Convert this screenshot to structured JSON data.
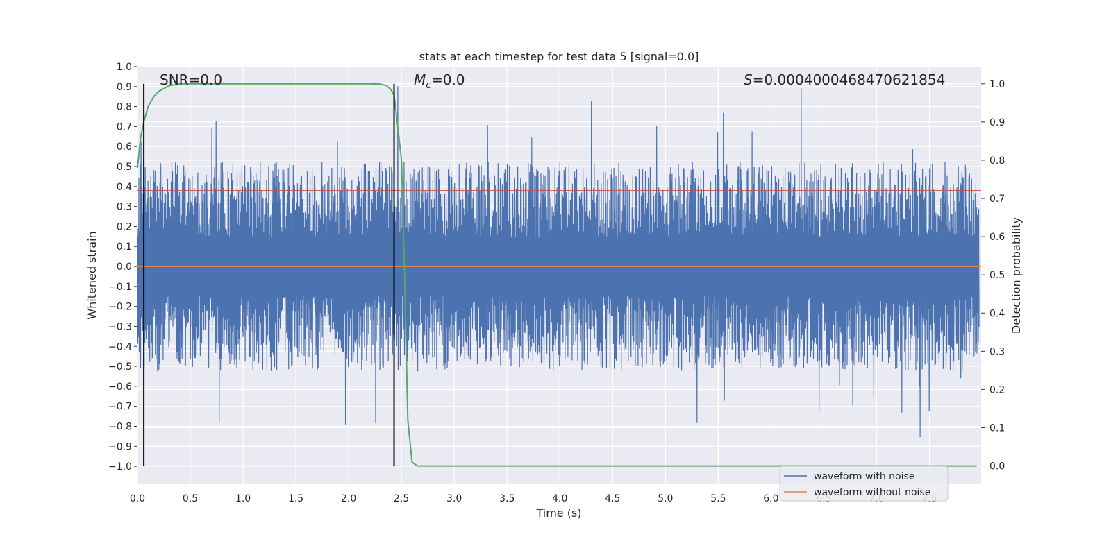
{
  "chart_data": {
    "type": "line",
    "title": "stats at each timestep for test data 5 [signal=0.0]",
    "xlabel": "Time (s)",
    "ylabel": "Whitened strain",
    "ylabel_right": "Detection probability",
    "xlim": [
      0.0,
      7.99
    ],
    "ylim": [
      -1.09,
      1.0
    ],
    "ylim_right": [
      -0.048,
      1.045
    ],
    "x_ticks": [
      "0.0",
      "0.5",
      "1.0",
      "1.5",
      "2.0",
      "2.5",
      "3.0",
      "3.5",
      "4.0",
      "4.5",
      "5.0",
      "5.5",
      "6.0",
      "6.5",
      "7.0",
      "7.5"
    ],
    "y_ticks": [
      "1.0",
      "0.9",
      "0.8",
      "0.7",
      "0.6",
      "0.5",
      "0.4",
      "0.3",
      "0.2",
      "0.1",
      "0.0",
      "−0.1",
      "−0.2",
      "−0.3",
      "−0.4",
      "−0.5",
      "−0.6",
      "−0.7",
      "−0.8",
      "−0.9",
      "−1.0"
    ],
    "y2_ticks": [
      "1.0",
      "0.9",
      "0.8",
      "0.7",
      "0.6",
      "0.5",
      "0.4",
      "0.3",
      "0.2",
      "0.1",
      "0.0"
    ],
    "grid": true,
    "annotations": {
      "snr": "SNR=0.0",
      "mc_symbol": "M",
      "mc_sub": "c",
      "mc_value": "=0.0",
      "s_symbol": "S",
      "s_value": "=0.0004000468470621854"
    },
    "threshold": 0.72,
    "vlines": [
      0.06,
      2.43
    ],
    "series": [
      {
        "name": "waveform with noise",
        "color": "#4c72b0",
        "envelope": {
          "typical_abs": 0.42,
          "max": 0.91,
          "min": -1.0
        }
      },
      {
        "name": "waveform without noise",
        "color": "#dd8452",
        "values_constant": 0.0
      },
      {
        "name": "detection probability",
        "color": "#55a868",
        "axis": "right",
        "x": [
          0.0,
          0.03,
          0.06,
          0.1,
          0.15,
          0.2,
          0.3,
          0.4,
          0.6,
          1.0,
          1.5,
          2.0,
          2.2,
          2.3,
          2.36,
          2.4,
          2.43,
          2.46,
          2.5,
          2.53,
          2.56,
          2.6,
          2.65,
          2.7,
          3.0,
          3.5,
          4.0,
          5.0,
          6.0,
          7.0,
          7.95
        ],
        "values": [
          0.78,
          0.86,
          0.9,
          0.94,
          0.965,
          0.98,
          0.995,
          1.0,
          1.0,
          1.0,
          1.0,
          1.0,
          1.0,
          0.999,
          0.995,
          0.985,
          0.97,
          0.9,
          0.8,
          0.5,
          0.12,
          0.01,
          0.0,
          0.0,
          0.0,
          0.0,
          0.0,
          0.0,
          0.0,
          0.0,
          0.0
        ]
      }
    ],
    "threshold_color": "#c44e52",
    "legend": {
      "position": "bottom-right",
      "entries": [
        "waveform with noise",
        "waveform without noise"
      ]
    }
  }
}
